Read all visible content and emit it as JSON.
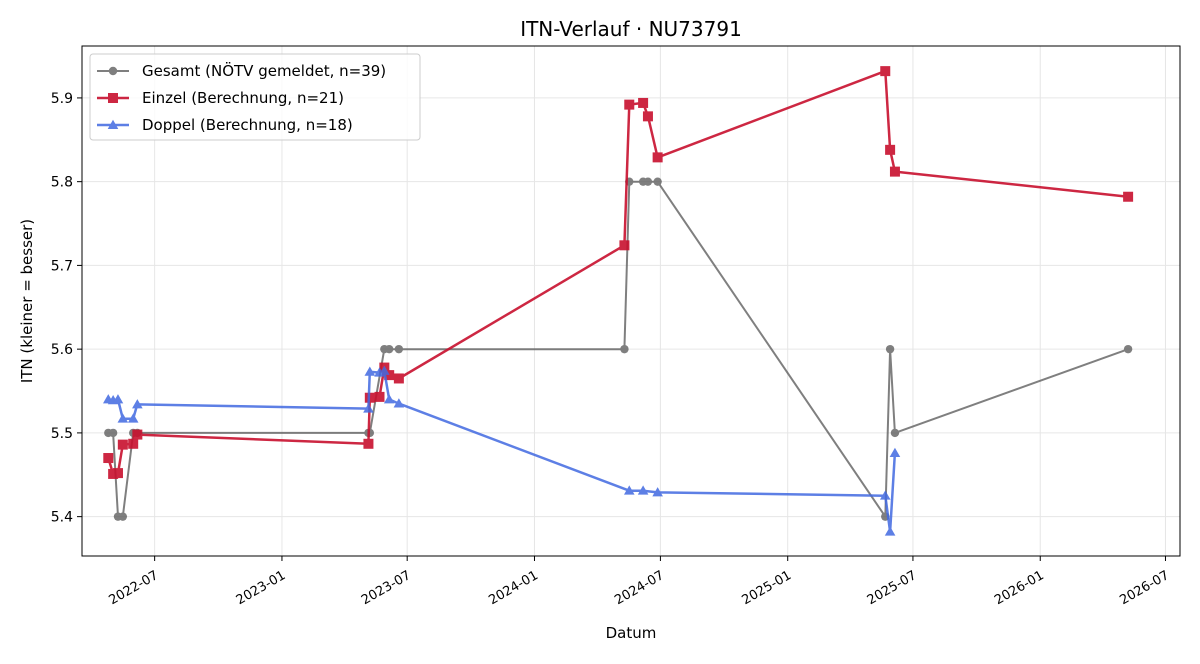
{
  "chart_data": {
    "type": "line",
    "title": "ITN-Verlauf · NU73791",
    "xlabel": "Datum",
    "ylabel": "ITN  (kleiner = besser)",
    "x_axis_type": "date",
    "xlim": [
      "2022-03-18",
      "2026-07-22"
    ],
    "ylim": [
      5.353,
      5.962
    ],
    "grid": true,
    "legend_position": "top-left",
    "x_ticks": [
      "2022-07",
      "2023-01",
      "2023-07",
      "2024-01",
      "2024-07",
      "2025-01",
      "2025-07",
      "2026-01",
      "2026-07"
    ],
    "y_ticks": [
      5.4,
      5.5,
      5.6,
      5.7,
      5.8,
      5.9
    ],
    "series": [
      {
        "name": "Gesamt (NÖTV gemeldet, n=39)",
        "color": "#555555",
        "marker": "circle",
        "points": [
          {
            "x": "2022-04-25",
            "y": 5.5
          },
          {
            "x": "2022-05-02",
            "y": 5.5
          },
          {
            "x": "2022-05-09",
            "y": 5.4
          },
          {
            "x": "2022-05-16",
            "y": 5.4
          },
          {
            "x": "2022-05-31",
            "y": 5.5
          },
          {
            "x": "2022-06-06",
            "y": 5.5
          },
          {
            "x": "2023-05-06",
            "y": 5.5
          },
          {
            "x": "2023-05-08",
            "y": 5.5
          },
          {
            "x": "2023-05-29",
            "y": 5.6
          },
          {
            "x": "2023-06-05",
            "y": 5.6
          },
          {
            "x": "2023-06-19",
            "y": 5.6
          },
          {
            "x": "2024-05-10",
            "y": 5.6
          },
          {
            "x": "2024-05-17",
            "y": 5.8
          },
          {
            "x": "2024-06-06",
            "y": 5.8
          },
          {
            "x": "2024-06-13",
            "y": 5.8
          },
          {
            "x": "2024-06-27",
            "y": 5.8
          },
          {
            "x": "2025-05-22",
            "y": 5.4
          },
          {
            "x": "2025-05-29",
            "y": 5.6
          },
          {
            "x": "2025-06-05",
            "y": 5.5
          },
          {
            "x": "2026-05-08",
            "y": 5.6
          }
        ]
      },
      {
        "name": "Einzel (Berechnung, n=21)",
        "color": "#c8102e",
        "marker": "square",
        "points": [
          {
            "x": "2022-04-25",
            "y": 5.47
          },
          {
            "x": "2022-05-02",
            "y": 5.451
          },
          {
            "x": "2022-05-09",
            "y": 5.452
          },
          {
            "x": "2022-05-16",
            "y": 5.486
          },
          {
            "x": "2022-05-31",
            "y": 5.487
          },
          {
            "x": "2022-06-06",
            "y": 5.498
          },
          {
            "x": "2023-05-06",
            "y": 5.487
          },
          {
            "x": "2023-05-08",
            "y": 5.542
          },
          {
            "x": "2023-05-22",
            "y": 5.543
          },
          {
            "x": "2023-05-29",
            "y": 5.578
          },
          {
            "x": "2023-06-05",
            "y": 5.569
          },
          {
            "x": "2023-06-19",
            "y": 5.565
          },
          {
            "x": "2024-05-10",
            "y": 5.724
          },
          {
            "x": "2024-05-17",
            "y": 5.892
          },
          {
            "x": "2024-06-06",
            "y": 5.894
          },
          {
            "x": "2024-06-13",
            "y": 5.878
          },
          {
            "x": "2024-06-27",
            "y": 5.829
          },
          {
            "x": "2025-05-22",
            "y": 5.932
          },
          {
            "x": "2025-05-29",
            "y": 5.838
          },
          {
            "x": "2025-06-05",
            "y": 5.812
          },
          {
            "x": "2026-05-08",
            "y": 5.782
          }
        ]
      },
      {
        "name": "Doppel (Berechnung, n=18)",
        "color": "#4169e1",
        "marker": "triangle",
        "points": [
          {
            "x": "2022-04-25",
            "y": 5.54
          },
          {
            "x": "2022-05-02",
            "y": 5.539
          },
          {
            "x": "2022-05-09",
            "y": 5.54
          },
          {
            "x": "2022-05-16",
            "y": 5.517
          },
          {
            "x": "2022-05-31",
            "y": 5.517
          },
          {
            "x": "2022-06-06",
            "y": 5.534
          },
          {
            "x": "2023-05-06",
            "y": 5.529
          },
          {
            "x": "2023-05-08",
            "y": 5.573
          },
          {
            "x": "2023-05-22",
            "y": 5.572
          },
          {
            "x": "2023-05-29",
            "y": 5.574
          },
          {
            "x": "2023-06-05",
            "y": 5.54
          },
          {
            "x": "2023-06-19",
            "y": 5.535
          },
          {
            "x": "2024-05-17",
            "y": 5.431
          },
          {
            "x": "2024-06-06",
            "y": 5.431
          },
          {
            "x": "2024-06-27",
            "y": 5.429
          },
          {
            "x": "2025-05-22",
            "y": 5.425
          },
          {
            "x": "2025-05-29",
            "y": 5.382
          },
          {
            "x": "2025-06-05",
            "y": 5.476
          }
        ]
      }
    ]
  }
}
